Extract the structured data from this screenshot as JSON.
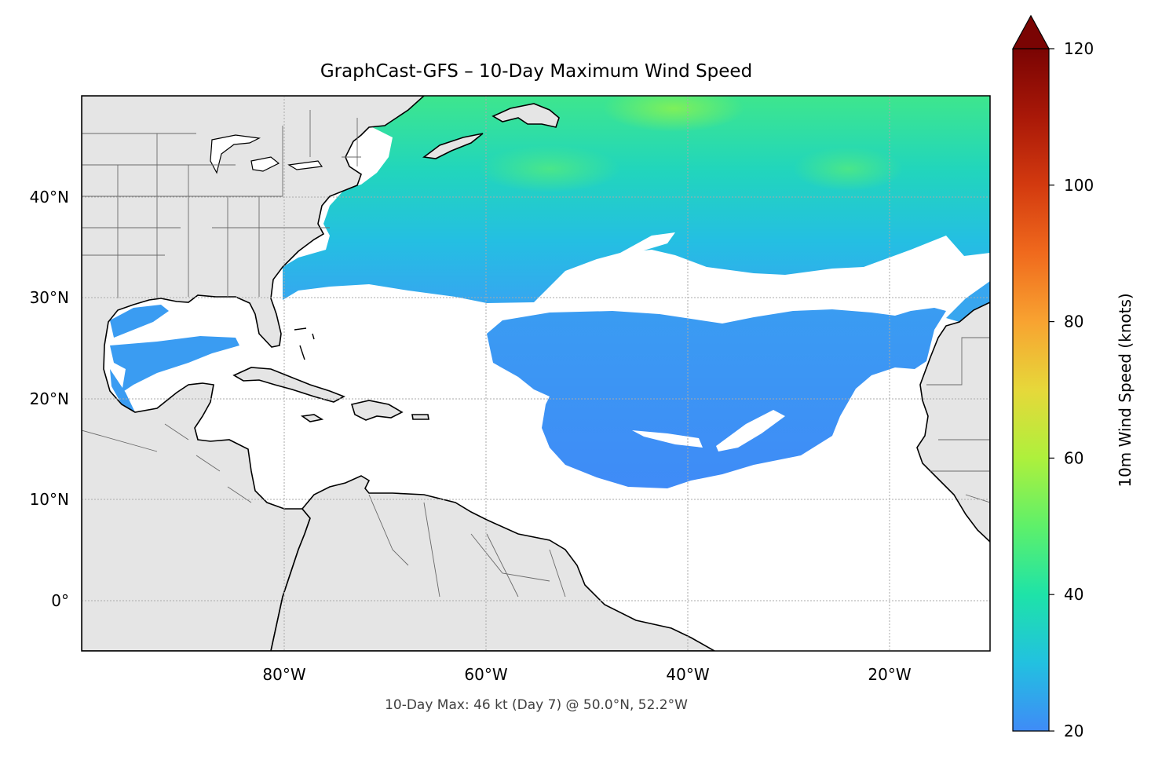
{
  "title": "GraphCast-GFS – 10-Day Maximum Wind Speed",
  "subtitle": "10-Day Max: 46 kt (Day 7) @ 50.0°N, 52.2°W",
  "colorbar": {
    "label": "10m Wind Speed (knots)",
    "ticks": [
      "20",
      "40",
      "60",
      "80",
      "100",
      "120"
    ],
    "tick_values": [
      20,
      40,
      60,
      80,
      100,
      120
    ],
    "range": [
      20,
      120
    ],
    "extend": "max",
    "colors": [
      "#3f8bf7",
      "#22c1e0",
      "#1ee3a8",
      "#5ef06a",
      "#aef03c",
      "#e6d83a",
      "#f8a331",
      "#f06a1d",
      "#d33a0f",
      "#a91808",
      "#7a0403"
    ]
  },
  "map": {
    "lon_range": [
      -100,
      -10
    ],
    "lat_range": [
      -5,
      50
    ],
    "land_color": "#e5e5e5",
    "ocean_color": "#ffffff",
    "lon_ticks": [
      "80°W",
      "60°W",
      "40°W",
      "20°W"
    ],
    "lon_tick_values": [
      -80,
      -60,
      -40,
      -20
    ],
    "lat_ticks": [
      "40°N",
      "30°N",
      "20°N",
      "10°N",
      "0°"
    ],
    "lat_tick_values": [
      40,
      30,
      20,
      10,
      0
    ],
    "gridlines": true
  }
}
